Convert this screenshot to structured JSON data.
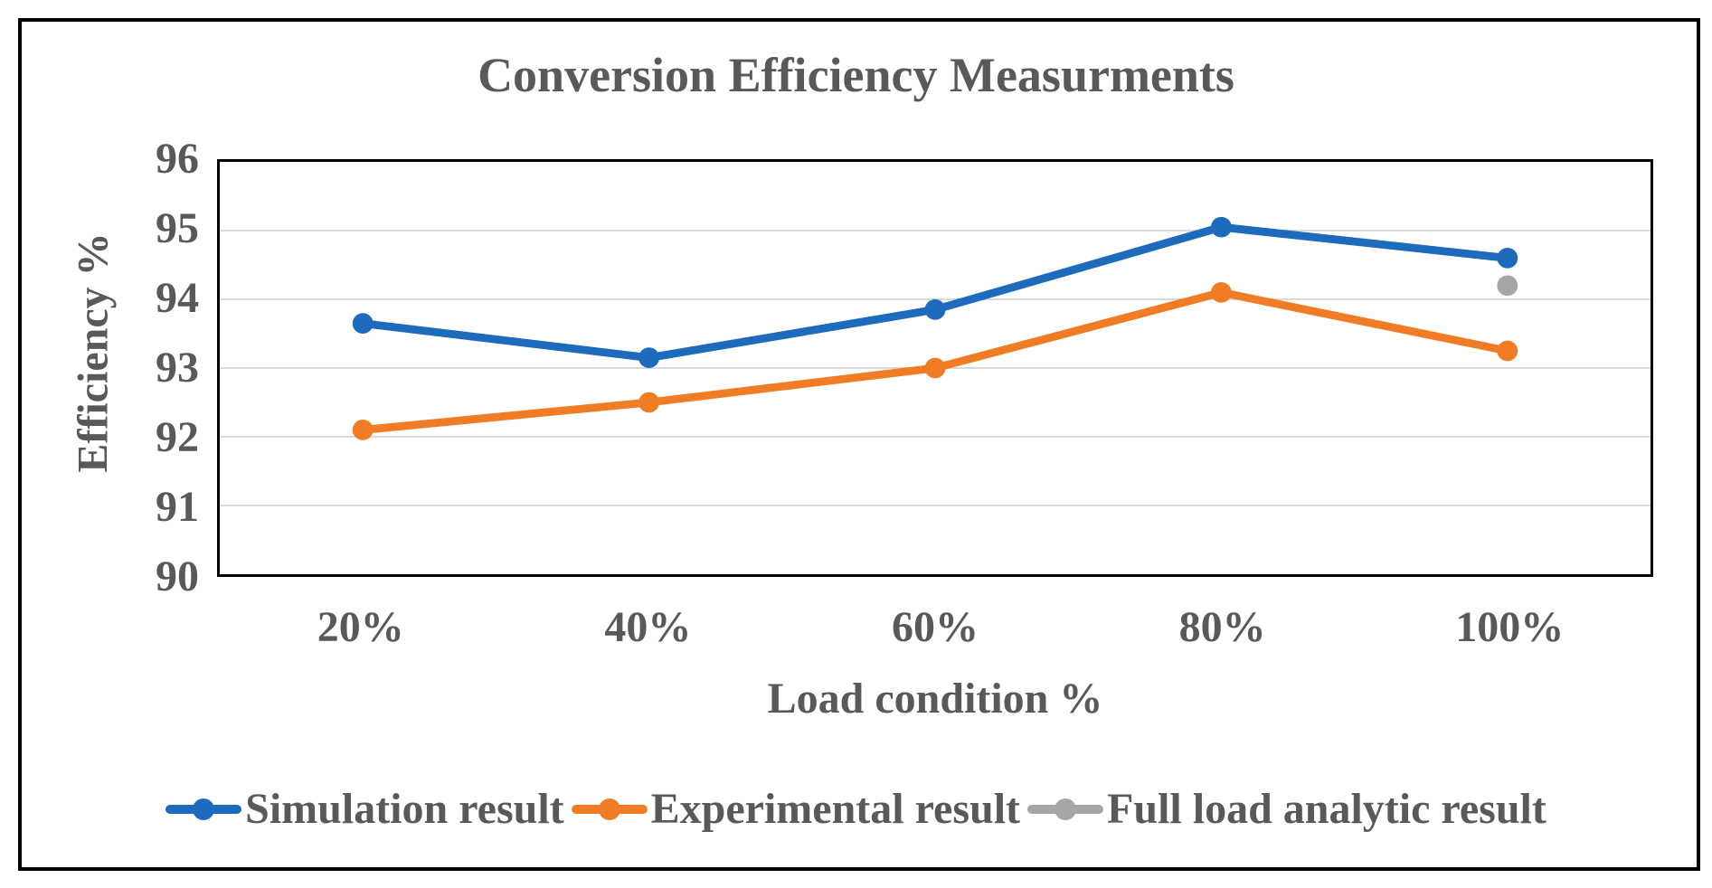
{
  "chart_data": {
    "type": "line",
    "title": "Conversion Efficiency Measurments",
    "xlabel": "Load condition %",
    "ylabel": "Efficiency %",
    "categories": [
      "20%",
      "40%",
      "60%",
      "80%",
      "100%"
    ],
    "series": [
      {
        "name": "Simulation result",
        "color": "#1E6BBE",
        "values": [
          93.65,
          93.15,
          93.85,
          95.05,
          94.6
        ]
      },
      {
        "name": "Experimental result",
        "color": "#F07D26",
        "values": [
          92.1,
          92.5,
          93.0,
          94.1,
          93.25
        ]
      },
      {
        "name": "Full load analytic result",
        "color": "#A6A6A6",
        "values": [
          null,
          null,
          null,
          null,
          94.2
        ]
      }
    ],
    "ylim": [
      90,
      96
    ],
    "yticks": [
      96,
      95,
      94,
      93,
      92,
      91,
      90
    ],
    "grid": "horizontal",
    "gridline_color": "#D9D9D9",
    "axis_text_color": "#595959",
    "plot_border_color": "#000000",
    "figure_border_color": "#000000",
    "background_color": "#FFFFFF",
    "legend_position": "bottom",
    "marker_style": "circle"
  }
}
